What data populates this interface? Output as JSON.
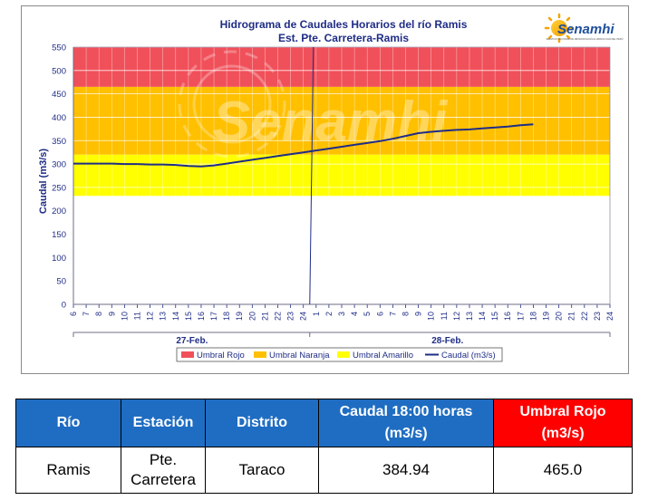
{
  "chart_data": {
    "type": "line",
    "title": "Hidrograma de Caudales Horarios del río Ramis",
    "subtitle": "Est. Pte. Carretera-Ramis",
    "ylabel": "Caudal  (m3/s)",
    "xlabel": "",
    "ylim": [
      0,
      550
    ],
    "yticks": [
      0,
      50,
      100,
      150,
      200,
      250,
      300,
      350,
      400,
      450,
      500,
      550
    ],
    "xticks": [
      "6",
      "7",
      "8",
      "9",
      "10",
      "11",
      "12",
      "13",
      "14",
      "15",
      "16",
      "17",
      "18",
      "19",
      "20",
      "21",
      "22",
      "23",
      "24",
      "1",
      "2",
      "3",
      "4",
      "5",
      "6",
      "7",
      "8",
      "9",
      "10",
      "11",
      "12",
      "13",
      "14",
      "15",
      "16",
      "17",
      "18",
      "19",
      "20",
      "21",
      "22",
      "23",
      "24"
    ],
    "day_labels": [
      {
        "label": "27-Feb.",
        "center_tick": 9
      },
      {
        "label": "28-Feb.",
        "center_tick": 29
      }
    ],
    "bands": [
      {
        "name": "Umbral Rojo",
        "from": 465,
        "to": 550,
        "color": "#f0505a"
      },
      {
        "name": "Umbral Naranja",
        "from": 320,
        "to": 465,
        "color": "#ffc000"
      },
      {
        "name": "Umbral Amarillo",
        "from": 232,
        "to": 320,
        "color": "#ffff00"
      }
    ],
    "series": [
      {
        "name": "Caudal (m3/s)",
        "color": "#1f2d86",
        "x": [
          0,
          1,
          2,
          3,
          4,
          5,
          6,
          7,
          8,
          9,
          10,
          11,
          12,
          13,
          14,
          15,
          16,
          17,
          18,
          19,
          20,
          21,
          22,
          23,
          24,
          25,
          26,
          27,
          28,
          29,
          30,
          31,
          32,
          33,
          34,
          35,
          36
        ],
        "y": [
          301,
          301,
          301,
          301,
          300,
          300,
          299,
          299,
          298,
          296,
          295,
          297,
          301,
          305,
          309,
          313,
          317,
          321,
          325,
          329,
          333,
          337,
          341,
          345,
          349,
          354,
          360,
          366,
          369,
          371,
          373,
          374,
          376,
          378,
          380,
          383,
          385
        ]
      }
    ],
    "divider_tick": 18.5,
    "grid": true,
    "legend_position": "bottom"
  },
  "watermark": {
    "text": "Senamhi"
  },
  "logo": {
    "text": "Senamhi",
    "tagline": "SERVICIO NACIONAL DE METEOROLOGÍA E HIDROLOGÍA DEL PERÚ"
  },
  "colors": {
    "header_blue": "#1f6dc2",
    "header_red": "#ff0000",
    "line": "#1f2d86"
  },
  "table": {
    "headers": [
      "Río",
      "Estación",
      "Distrito",
      "Caudal  18:00 horas (m3/s)",
      "Umbral Rojo (m3/s)"
    ],
    "row": [
      "Ramis",
      "Pte. Carretera",
      "Taraco",
      "384.94",
      "465.0"
    ]
  }
}
